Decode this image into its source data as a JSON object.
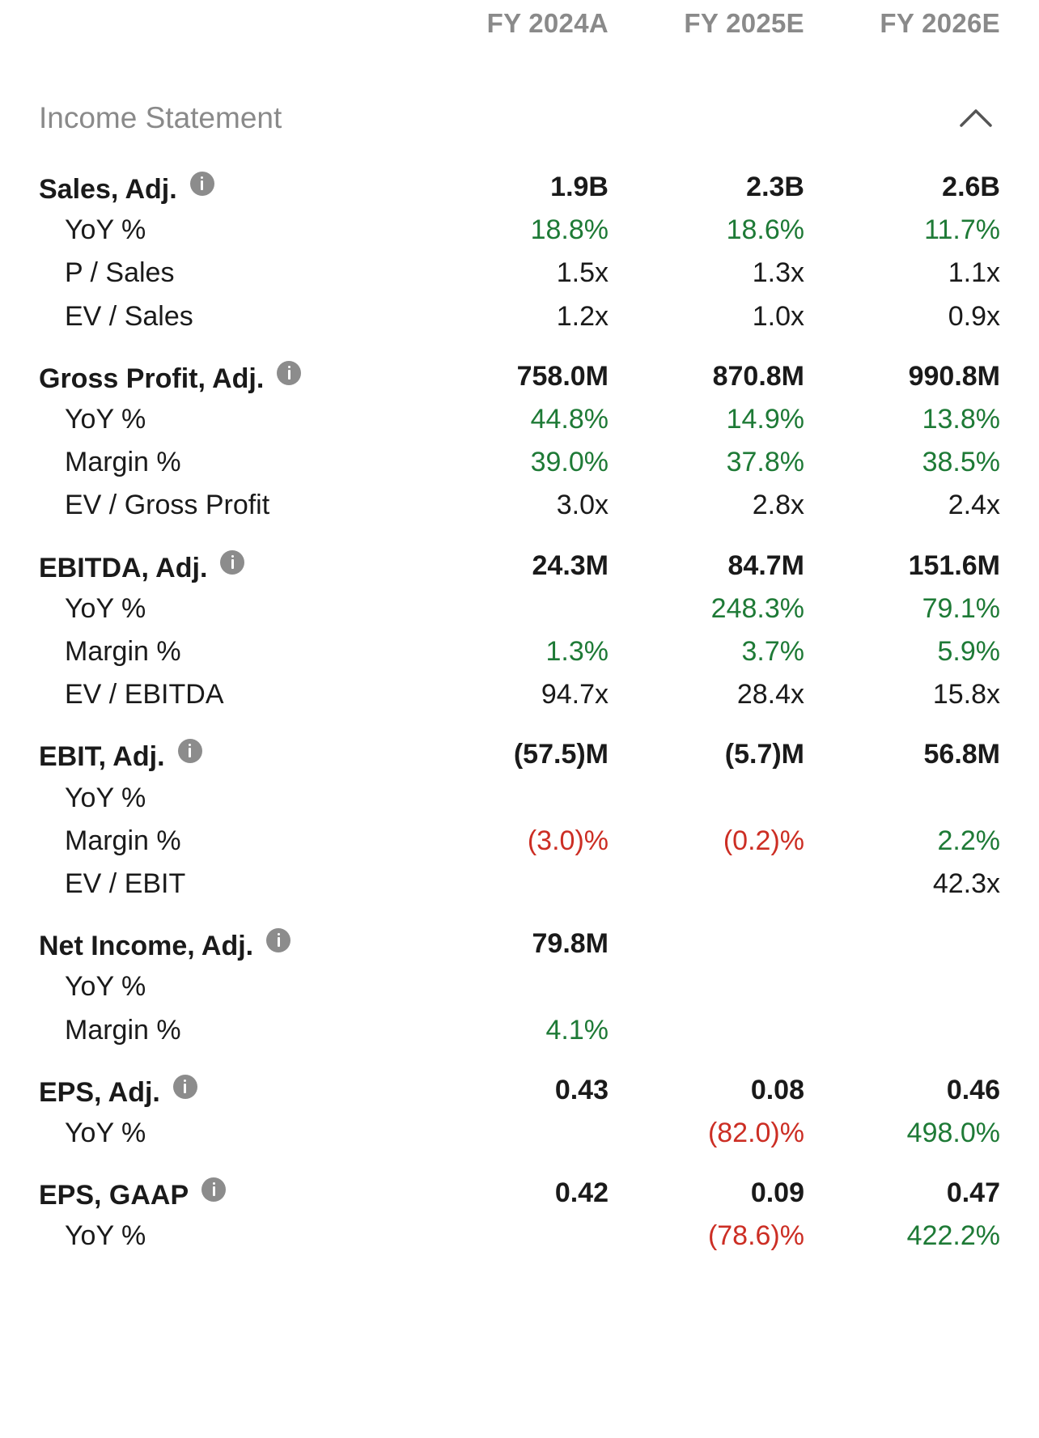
{
  "columns": [
    "FY 2024A",
    "FY 2025E",
    "FY 2026E"
  ],
  "section": {
    "title": "Income Statement",
    "collapse_icon": "chevron-up-icon"
  },
  "colors": {
    "positive": "#1e7a36",
    "negative": "#cc2e24",
    "muted": "#8a8a8a"
  },
  "rows": [
    {
      "type": "main",
      "label": "Sales, Adj.",
      "info": true,
      "values": [
        "1.9B",
        "2.3B",
        "2.6B"
      ]
    },
    {
      "type": "sub",
      "label": "YoY %",
      "values": [
        "18.8%",
        "18.6%",
        "11.7%"
      ],
      "tones": [
        "pos",
        "pos",
        "pos"
      ]
    },
    {
      "type": "sub",
      "label": "P / Sales",
      "values": [
        "1.5x",
        "1.3x",
        "1.1x"
      ]
    },
    {
      "type": "sub",
      "label": "EV / Sales",
      "values": [
        "1.2x",
        "1.0x",
        "0.9x"
      ]
    },
    {
      "type": "main",
      "label": "Gross Profit, Adj.",
      "info": true,
      "values": [
        "758.0M",
        "870.8M",
        "990.8M"
      ]
    },
    {
      "type": "sub",
      "label": "YoY %",
      "values": [
        "44.8%",
        "14.9%",
        "13.8%"
      ],
      "tones": [
        "pos",
        "pos",
        "pos"
      ]
    },
    {
      "type": "sub",
      "label": "Margin %",
      "values": [
        "39.0%",
        "37.8%",
        "38.5%"
      ],
      "tones": [
        "pos",
        "pos",
        "pos"
      ]
    },
    {
      "type": "sub",
      "label": "EV / Gross Profit",
      "values": [
        "3.0x",
        "2.8x",
        "2.4x"
      ]
    },
    {
      "type": "main",
      "label": "EBITDA, Adj.",
      "info": true,
      "values": [
        "24.3M",
        "84.7M",
        "151.6M"
      ]
    },
    {
      "type": "sub",
      "label": "YoY %",
      "values": [
        "",
        "248.3%",
        "79.1%"
      ],
      "tones": [
        "",
        "pos",
        "pos"
      ]
    },
    {
      "type": "sub",
      "label": "Margin %",
      "values": [
        "1.3%",
        "3.7%",
        "5.9%"
      ],
      "tones": [
        "pos",
        "pos",
        "pos"
      ]
    },
    {
      "type": "sub",
      "label": "EV / EBITDA",
      "values": [
        "94.7x",
        "28.4x",
        "15.8x"
      ]
    },
    {
      "type": "main",
      "label": "EBIT, Adj.",
      "info": true,
      "values": [
        "(57.5)M",
        "(5.7)M",
        "56.8M"
      ]
    },
    {
      "type": "sub",
      "label": "YoY %",
      "values": [
        "",
        "",
        ""
      ]
    },
    {
      "type": "sub",
      "label": "Margin %",
      "values": [
        "(3.0)%",
        "(0.2)%",
        "2.2%"
      ],
      "tones": [
        "neg",
        "neg",
        "pos"
      ]
    },
    {
      "type": "sub",
      "label": "EV / EBIT",
      "values": [
        "",
        "",
        "42.3x"
      ]
    },
    {
      "type": "main",
      "label": "Net Income, Adj.",
      "info": true,
      "values": [
        "79.8M",
        "",
        ""
      ]
    },
    {
      "type": "sub",
      "label": "YoY %",
      "values": [
        "",
        "",
        ""
      ]
    },
    {
      "type": "sub",
      "label": "Margin %",
      "values": [
        "4.1%",
        "",
        ""
      ],
      "tones": [
        "pos",
        "",
        ""
      ]
    },
    {
      "type": "main",
      "label": "EPS, Adj.",
      "info": true,
      "values": [
        "0.43",
        "0.08",
        "0.46"
      ]
    },
    {
      "type": "sub",
      "label": "YoY %",
      "values": [
        "",
        "(82.0)%",
        "498.0%"
      ],
      "tones": [
        "",
        "neg",
        "pos"
      ]
    },
    {
      "type": "main",
      "label": "EPS, GAAP",
      "info": true,
      "values": [
        "0.42",
        "0.09",
        "0.47"
      ]
    },
    {
      "type": "sub",
      "label": "YoY %",
      "values": [
        "",
        "(78.6)%",
        "422.2%"
      ],
      "tones": [
        "",
        "neg",
        "pos"
      ]
    }
  ]
}
